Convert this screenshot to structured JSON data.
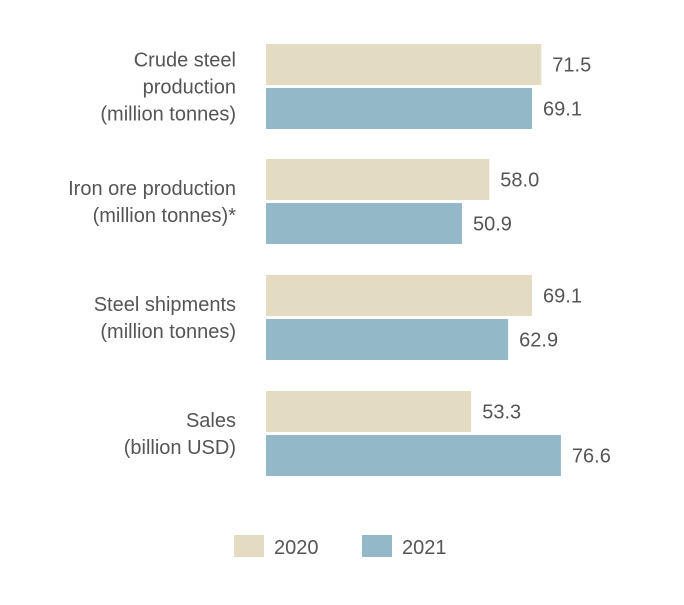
{
  "chart_data": {
    "type": "bar",
    "orientation": "horizontal",
    "categories": [
      [
        "Crude steel",
        "production",
        "(million tonnes)"
      ],
      [
        "Iron ore production",
        "(million tonnes)*"
      ],
      [
        "Steel shipments",
        "(million tonnes)"
      ],
      [
        "Sales",
        "(billion USD)"
      ]
    ],
    "series": [
      {
        "name": "2020",
        "color": "#e3dcc3",
        "values": [
          71.5,
          58.0,
          69.1,
          53.3
        ],
        "labels": [
          "71.5",
          "58.0",
          "69.1",
          "53.3"
        ]
      },
      {
        "name": "2021",
        "color": "#93b9c9",
        "values": [
          69.1,
          50.9,
          62.9,
          76.6
        ],
        "labels": [
          "69.1",
          "50.9",
          "62.9",
          "76.6"
        ]
      }
    ],
    "legend_position": "bottom-center",
    "grid": false,
    "xlim": [
      0,
      85
    ]
  }
}
